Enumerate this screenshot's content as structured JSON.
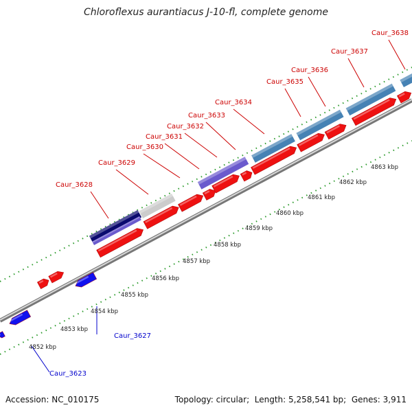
{
  "title": "Chloroflexus aurantiacus J-10-fl, complete genome",
  "footer": {
    "accession_label": "Accession:",
    "accession": "NC_010175",
    "topology_label": "Topology:",
    "topology": "circular",
    "length_label": "Length:",
    "length": "5,258,541 bp",
    "genes_label": "Genes:",
    "genes": "3,911"
  },
  "colors": {
    "forward_label": "#cc0000",
    "reverse_label": "#0000cc",
    "gene_red": "#ee1111",
    "gene_blue": "#1111ee",
    "backbone": "#999999",
    "tick_green": "#229922"
  },
  "scale_ticks": [
    "4852 kbp",
    "4853 kbp",
    "4854 kbp",
    "4855 kbp",
    "4856 kbp",
    "4857 kbp",
    "4858 kbp",
    "4859 kbp",
    "4860 kbp",
    "4861 kbp",
    "4862 kbp",
    "4863 kbp"
  ],
  "gene_labels_forward": [
    "Caur_3628",
    "Caur_3629",
    "Caur_3630",
    "Caur_3631",
    "Caur_3632",
    "Caur_3633",
    "Caur_3634",
    "Caur_3635",
    "Caur_3636",
    "Caur_3637",
    "Caur_3638"
  ],
  "gene_labels_reverse": [
    "Caur_3627",
    "Caur_3623"
  ],
  "icons": [
    "genome-map"
  ]
}
